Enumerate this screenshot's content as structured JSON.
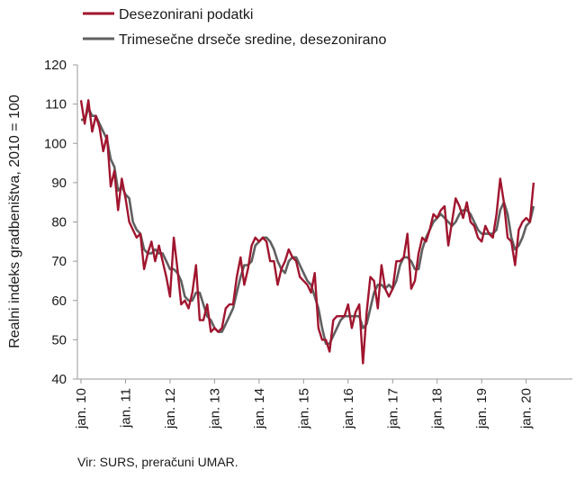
{
  "chart_data": {
    "type": "line",
    "title": "",
    "xlabel": "",
    "ylabel": "Realni indeks gradbeništva, 2010 = 100",
    "ylim": [
      40,
      120
    ],
    "yticks": [
      40,
      50,
      60,
      70,
      80,
      90,
      100,
      110,
      120
    ],
    "x_tick_labels": [
      "jan. 10",
      "jan. 11",
      "jan. 12",
      "jan. 13",
      "jan. 14",
      "jan. 15",
      "jan. 16",
      "jan. 17",
      "jan. 18",
      "jan. 19",
      "jan. 20"
    ],
    "x_start": "2010-01",
    "legend_position": "top-left",
    "grid": false,
    "series": [
      {
        "name": "Desezonirani podatki",
        "color": "#a0152e",
        "values": [
          111,
          105,
          111,
          103,
          107,
          104,
          98,
          102,
          89,
          93,
          83,
          91,
          86,
          80,
          78,
          76,
          77,
          68,
          72,
          75,
          70,
          74,
          70,
          66,
          61,
          76,
          68,
          59,
          60,
          58,
          62,
          69,
          55,
          55,
          59,
          52,
          53,
          52,
          53,
          58,
          59,
          59,
          66,
          71,
          64,
          68,
          74,
          76,
          75,
          76,
          75,
          70,
          70,
          64,
          68,
          70,
          73,
          71,
          70,
          66,
          65,
          64,
          62,
          67,
          53,
          50,
          50,
          47,
          55,
          56,
          56,
          56,
          59,
          53,
          57,
          59,
          44,
          57,
          66,
          65,
          58,
          69,
          63,
          61,
          63,
          70,
          70,
          71,
          77,
          63,
          65,
          72,
          76,
          75,
          78,
          82,
          81,
          83,
          84,
          74,
          80,
          86,
          84,
          81,
          85,
          80,
          79,
          76,
          75,
          79,
          77,
          76,
          82,
          91,
          85,
          76,
          75,
          69,
          78,
          80,
          81,
          80,
          90
        ]
      },
      {
        "name": "Trimesečne drseče sredine, desezonirano",
        "color": "#606060",
        "values": [
          106,
          106,
          109,
          107,
          107,
          105,
          103,
          101,
          96,
          94,
          88,
          89,
          87,
          86,
          80,
          78,
          77,
          73,
          72,
          72,
          73,
          72,
          72,
          70,
          68,
          68,
          67,
          65,
          61,
          60,
          60,
          62,
          62,
          59,
          56,
          55,
          53,
          52,
          52,
          54,
          56,
          58,
          62,
          66,
          69,
          69,
          70,
          74,
          75,
          76,
          76,
          75,
          73,
          70,
          68,
          67,
          70,
          71,
          71,
          69,
          67,
          65,
          64,
          61,
          58,
          53,
          49,
          49,
          51,
          53,
          55,
          56,
          56,
          56,
          56,
          56,
          53,
          54,
          58,
          62,
          64,
          64,
          63,
          64,
          63,
          65,
          69,
          71,
          71,
          70,
          68,
          68,
          73,
          76,
          78,
          80,
          81,
          82,
          81,
          80,
          79,
          80,
          82,
          83,
          83,
          82,
          80,
          78,
          77,
          77,
          77,
          77,
          78,
          83,
          85,
          82,
          76,
          73,
          74,
          76,
          79,
          80,
          84
        ]
      }
    ]
  },
  "source_note": "Vir: SURS, preračuni UMAR."
}
